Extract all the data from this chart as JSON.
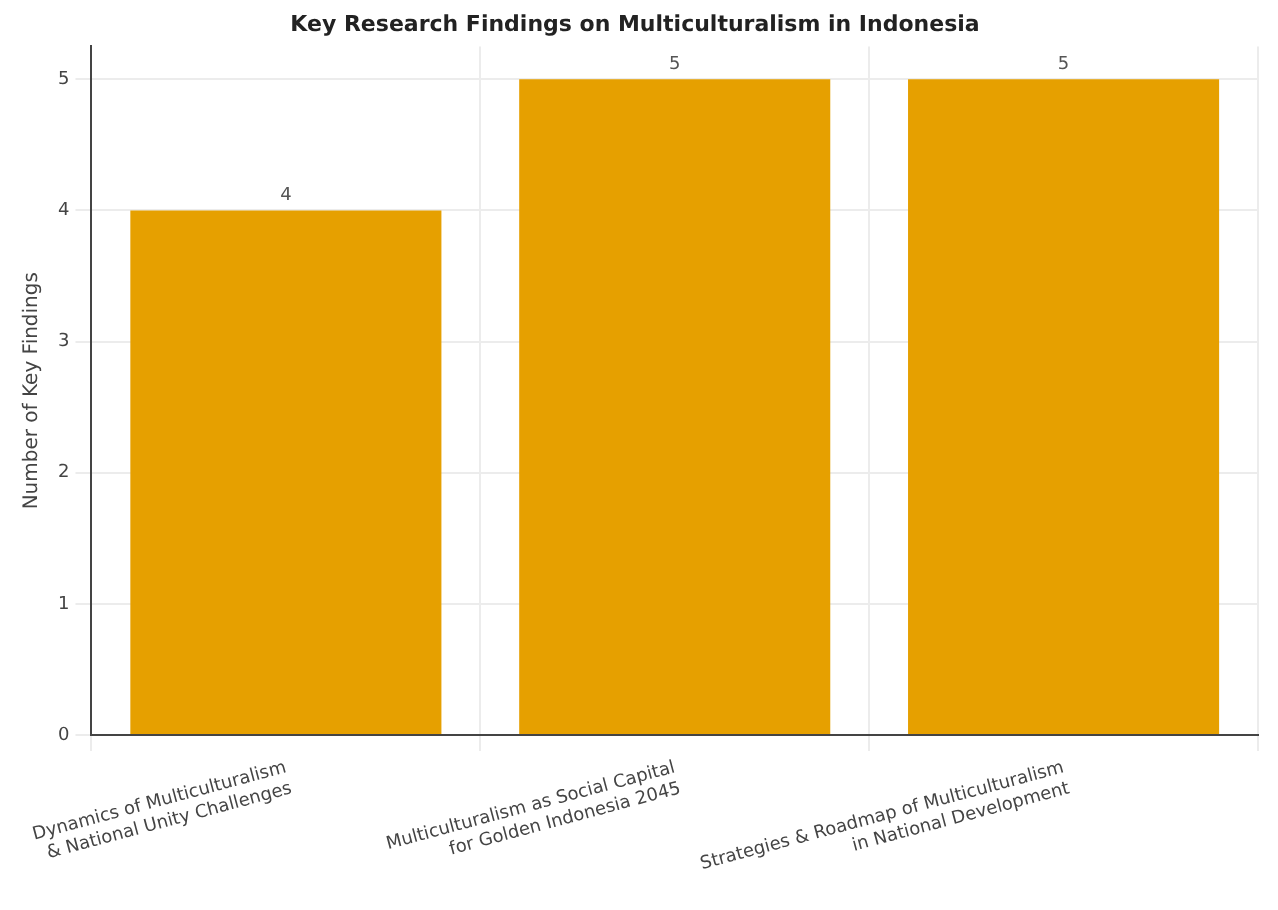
{
  "chart_data": {
    "type": "bar",
    "title": "Key Research Findings on Multiculturalism in Indonesia",
    "ylabel": "Number of Key Findings",
    "categories": [
      "Dynamics of Multiculturalism\n& National Unity Challenges",
      "Multiculturalism as Social Capital\nfor Golden Indonesia 2045",
      "Strategies & Roadmap of Multiculturalism\nin National Development"
    ],
    "values": [
      4,
      5,
      5
    ],
    "color": "#e6a000",
    "ylim": [
      0,
      5.25
    ],
    "yticks": [
      0,
      1,
      2,
      3,
      4,
      5
    ],
    "grid": true,
    "data_labels": true
  }
}
